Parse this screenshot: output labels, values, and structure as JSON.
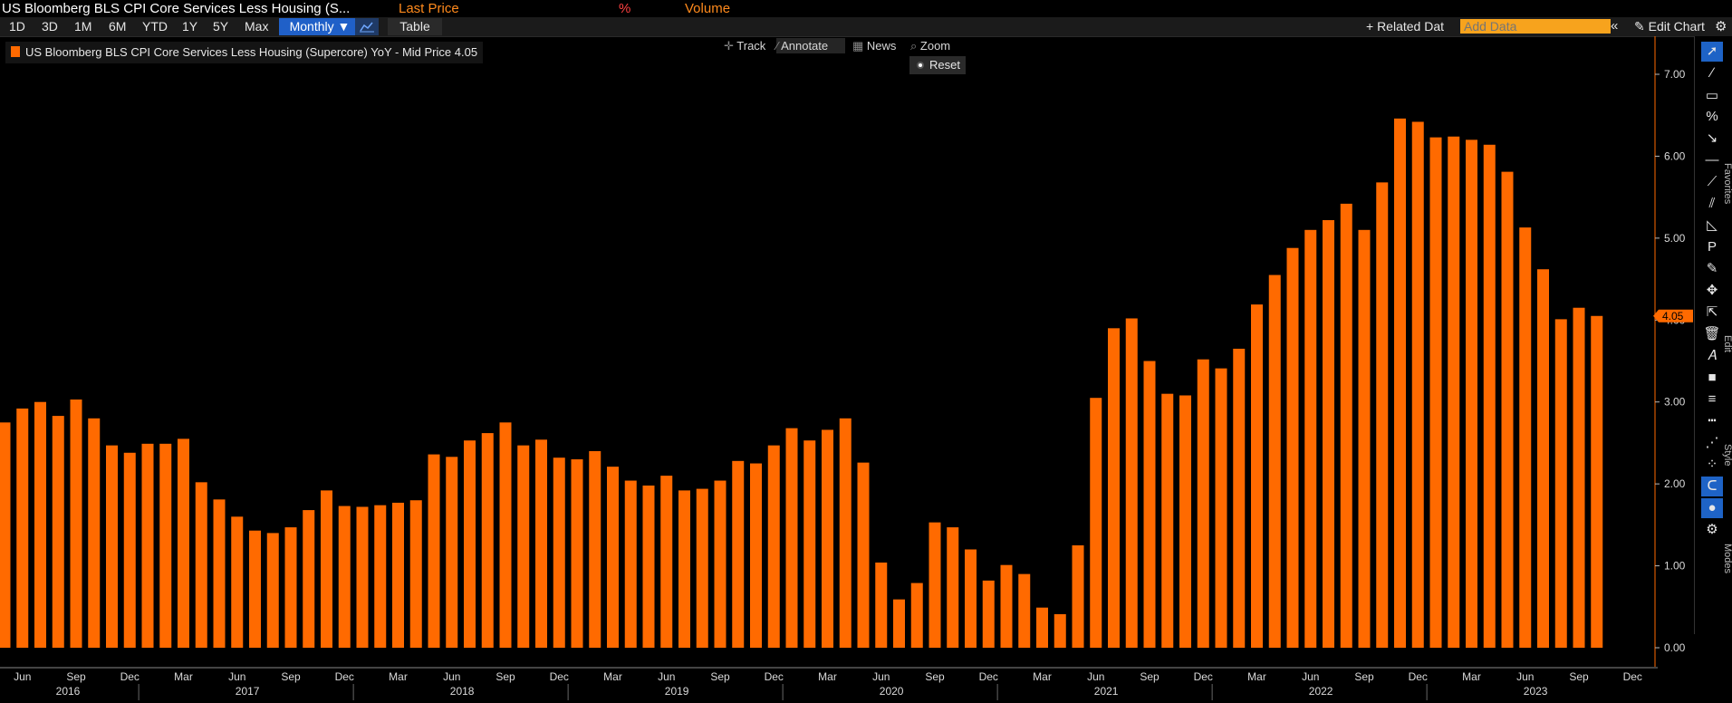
{
  "title_bar": {
    "security": "US Bloomberg BLS CPI Core Services Less Housing (S...",
    "field": "Last Price",
    "unit": "%",
    "volume": "Volume"
  },
  "toolbar": {
    "ranges": [
      "1D",
      "3D",
      "1M",
      "6M",
      "YTD",
      "1Y",
      "5Y",
      "Max"
    ],
    "period": "Monthly ▼",
    "table": "Table",
    "related_data": "+ Related Dat",
    "add_data_placeholder": "Add Data",
    "collapse": "«",
    "edit_chart": "✎ Edit Chart",
    "settings": "⚙"
  },
  "legend": {
    "label": "US Bloomberg BLS CPI Core Services Less Housing (Supercore) YoY - Mid Price 4.05"
  },
  "chart_tools": {
    "track": "Track",
    "annotate": "Annotate",
    "news": "News",
    "zoom": "Zoom",
    "reset": "Reset"
  },
  "sidebar": {
    "icons": [
      "pointer-icon",
      "line-draw-icon",
      "rectangle-icon",
      "percent-measure-icon",
      "arrow-icon",
      "horizontal-line-icon",
      "trend-line-icon",
      "channel-icon",
      "fib-fan-icon",
      "p-label-icon",
      "pencil-icon",
      "move-icon",
      "select-icon",
      "trash-icon",
      "text-style-icon",
      "fill-color-icon",
      "line-weight-icon",
      "line-dash-icon",
      "dotted-icon",
      "nodes-icon",
      "magnet-icon",
      "palette-icon",
      "settings-icon"
    ],
    "tabs": [
      "Favorites",
      "Edit",
      "Style",
      "Modes"
    ]
  },
  "chart_data": {
    "type": "bar",
    "color": "#ff6a00",
    "accent_line_color": "#ff6a00",
    "last_value_label": "4.05",
    "ylim": [
      -0.1,
      7.25
    ],
    "y_ticks": [
      "0.00",
      "1.00",
      "2.00",
      "3.00",
      "4.00",
      "5.00",
      "6.00",
      "7.00"
    ],
    "x_month_labels": [
      "Jun",
      "Sep",
      "Dec",
      "Mar",
      "Jun",
      "Sep",
      "Dec",
      "Mar",
      "Jun",
      "Sep",
      "Dec",
      "Mar",
      "Jun",
      "Sep",
      "Dec",
      "Mar",
      "Jun",
      "Sep",
      "Dec",
      "Mar",
      "Jun",
      "Sep",
      "Dec",
      "Mar",
      "Jun",
      "Sep",
      "Dec",
      "Mar",
      "Jun",
      "Sep",
      "Dec"
    ],
    "x_year_labels": [
      "2016",
      "2017",
      "2018",
      "2019",
      "2020",
      "2021",
      "2022",
      "2023"
    ],
    "start": "2016-05",
    "values": [
      2.75,
      2.92,
      3.0,
      2.83,
      3.03,
      2.8,
      2.47,
      2.38,
      2.49,
      2.49,
      2.55,
      2.02,
      1.81,
      1.6,
      1.43,
      1.4,
      1.47,
      1.68,
      1.92,
      1.73,
      1.72,
      1.74,
      1.77,
      1.8,
      2.36,
      2.33,
      2.53,
      2.62,
      2.75,
      2.47,
      2.54,
      2.32,
      2.3,
      2.4,
      2.21,
      2.04,
      1.98,
      2.1,
      1.92,
      1.94,
      2.04,
      2.28,
      2.25,
      2.47,
      2.68,
      2.53,
      2.66,
      2.8,
      2.26,
      1.04,
      0.59,
      0.79,
      1.53,
      1.47,
      1.2,
      0.82,
      1.01,
      0.9,
      0.49,
      0.41,
      1.25,
      3.05,
      3.9,
      4.02,
      3.5,
      3.1,
      3.08,
      3.52,
      3.41,
      3.65,
      4.19,
      4.55,
      4.88,
      5.1,
      5.22,
      5.42,
      5.1,
      5.68,
      6.46,
      6.42,
      6.23,
      6.24,
      6.2,
      6.14,
      5.81,
      5.13,
      4.62,
      4.01,
      4.15,
      4.05
    ]
  }
}
